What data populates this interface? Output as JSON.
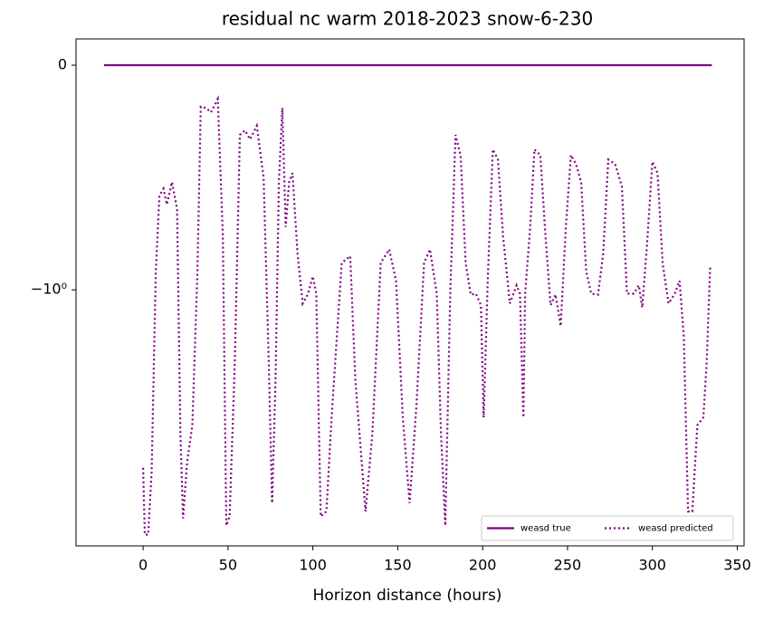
{
  "chart_data": {
    "type": "line",
    "title": "residual nc warm 2018-2023 snow-6-230",
    "x_label": "Horizon distance (hours)",
    "yscale": "symlog",
    "linthresh": 1,
    "xlim": [
      -39.5,
      354
    ],
    "xticks": [
      0,
      50,
      100,
      150,
      200,
      250,
      300,
      350
    ],
    "ylim": [
      -13.8,
      0.117
    ],
    "yticks": [
      0,
      {
        "value": -1,
        "label": "−10⁰"
      }
    ],
    "legend": "lower right",
    "series": [
      {
        "name": "weasd true",
        "color": "#800080",
        "style": "solid",
        "x": [
          -23,
          335
        ],
        "values": [
          0,
          0
        ]
      },
      {
        "name": "weasd predicted",
        "color": "#800080",
        "style": "dotted",
        "x": [
          0,
          1,
          3,
          5,
          7.5,
          9.6,
          12,
          14,
          17,
          20,
          22,
          23.5,
          26,
          29,
          32,
          34,
          37,
          40,
          44,
          47,
          49,
          51,
          54,
          57,
          60,
          63,
          67,
          71,
          74,
          76,
          78,
          80,
          82,
          84,
          86,
          88,
          91,
          94,
          97,
          100,
          102,
          104.6,
          108,
          111,
          117,
          122,
          125,
          131,
          135,
          140,
          145,
          149,
          153,
          157,
          161,
          165.5,
          169,
          173,
          175.5,
          178,
          181,
          184,
          187,
          190,
          193,
          196,
          199,
          200.6,
          203,
          206,
          209,
          212,
          216,
          220,
          222,
          224,
          225,
          228,
          230.5,
          234,
          237,
          240,
          243,
          246,
          249,
          252,
          255,
          258,
          261,
          264,
          268,
          271,
          274,
          278,
          282,
          285,
          289,
          292,
          294,
          297,
          300,
          303,
          306,
          309.5,
          313,
          316,
          318.5,
          321,
          323.5,
          326.5,
          330,
          332,
          334
        ],
        "values": [
          -6.2,
          -12.3,
          -12.3,
          -6.5,
          -0.92,
          -0.58,
          -0.55,
          -0.62,
          -0.52,
          -0.64,
          -4.4,
          -10.4,
          -5.8,
          -4.0,
          -0.92,
          -0.185,
          -0.19,
          -0.21,
          -0.15,
          -0.76,
          -11.2,
          -10.2,
          -2.1,
          -0.31,
          -0.29,
          -0.33,
          -0.27,
          -0.5,
          -2.1,
          -8.9,
          -2.5,
          -0.52,
          -0.19,
          -0.72,
          -0.52,
          -0.48,
          -0.84,
          -1.15,
          -1.05,
          -0.94,
          -1.04,
          -10.2,
          -9.7,
          -3.7,
          -0.88,
          -0.85,
          -2.5,
          -9.7,
          -4.4,
          -0.88,
          -0.82,
          -0.96,
          -3.7,
          -8.9,
          -3.3,
          -0.88,
          -0.82,
          -1.04,
          -4.4,
          -11.2,
          -1.0,
          -0.31,
          -0.4,
          -0.88,
          -1.05,
          -1.04,
          -1.17,
          -3.7,
          -0.96,
          -0.375,
          -0.42,
          -0.76,
          -1.15,
          -0.98,
          -1.04,
          -3.7,
          -1.04,
          -0.72,
          -0.375,
          -0.4,
          -0.76,
          -1.17,
          -1.05,
          -1.45,
          -0.72,
          -0.4,
          -0.44,
          -0.52,
          -0.92,
          -1.04,
          -1.05,
          -0.84,
          -0.42,
          -0.44,
          -0.54,
          -1.04,
          -1.04,
          -0.98,
          -1.2,
          -0.78,
          -0.43,
          -0.48,
          -0.88,
          -1.15,
          -1.05,
          -0.96,
          -1.6,
          -9.7,
          -9.7,
          -4.0,
          -3.7,
          -2.1,
          -0.9
        ]
      }
    ]
  }
}
